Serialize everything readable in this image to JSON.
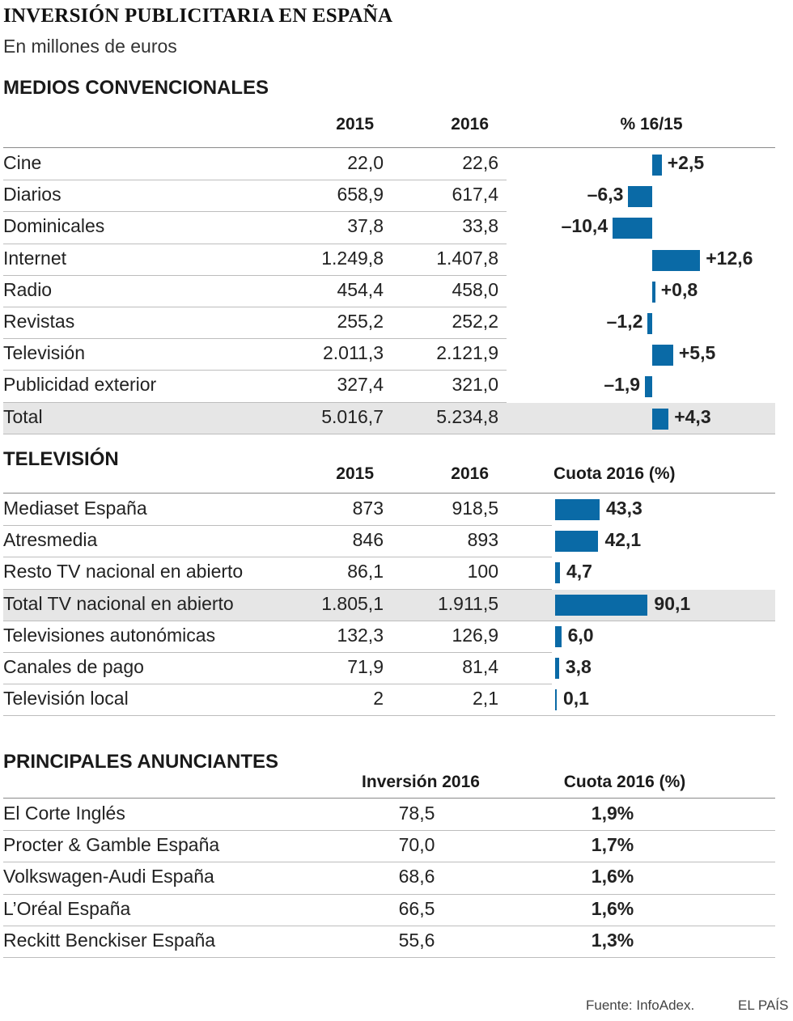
{
  "title": "INVERSIÓN PUBLICITARIA EN ESPAÑA",
  "subtitle": "En millones de euros",
  "colors": {
    "bar": "#0a6aa6",
    "highlight": "#e6e6e6"
  },
  "medios": {
    "heading": "MEDIOS CONVENCIONALES",
    "col_2015": "2015",
    "col_2016": "2016",
    "col_pct": "% 16/15"
  },
  "tv": {
    "heading": "TELEVISIÓN",
    "col_2015": "2015",
    "col_2016": "2016",
    "col_share": "Cuota 2016 (%)"
  },
  "anunciantes": {
    "heading": "PRINCIPALES ANUNCIANTES",
    "col_inv": "Inversión 2016",
    "col_share": "Cuota 2016 (%)"
  },
  "chart_data": [
    {
      "type": "table",
      "title": "MEDIOS CONVENCIONALES",
      "columns": [
        "2015",
        "2016",
        "% 16/15"
      ],
      "rows": [
        {
          "label": "Cine",
          "v2015": "22,0",
          "v2016": "22,6",
          "pct": 2.5,
          "pct_text": "+2,5",
          "highlight": false
        },
        {
          "label": "Diarios",
          "v2015": "658,9",
          "v2016": "617,4",
          "pct": -6.3,
          "pct_text": "–6,3",
          "highlight": false
        },
        {
          "label": "Dominicales",
          "v2015": "37,8",
          "v2016": "33,8",
          "pct": -10.4,
          "pct_text": "–10,4",
          "highlight": false
        },
        {
          "label": "Internet",
          "v2015": "1.249,8",
          "v2016": "1.407,8",
          "pct": 12.6,
          "pct_text": "+12,6",
          "highlight": false
        },
        {
          "label": "Radio",
          "v2015": "454,4",
          "v2016": "458,0",
          "pct": 0.8,
          "pct_text": "+0,8",
          "highlight": false
        },
        {
          "label": "Revistas",
          "v2015": "255,2",
          "v2016": "252,2",
          "pct": -1.2,
          "pct_text": "–1,2",
          "highlight": false
        },
        {
          "label": "Televisión",
          "v2015": "2.011,3",
          "v2016": "2.121,9",
          "pct": 5.5,
          "pct_text": "+5,5",
          "highlight": false
        },
        {
          "label": "Publicidad exterior",
          "v2015": "327,4",
          "v2016": "321,0",
          "pct": -1.9,
          "pct_text": "–1,9",
          "highlight": false
        },
        {
          "label": "Total",
          "v2015": "5.016,7",
          "v2016": "5.234,8",
          "pct": 4.3,
          "pct_text": "+4,3",
          "highlight": true
        }
      ]
    },
    {
      "type": "table",
      "title": "TELEVISIÓN",
      "columns": [
        "2015",
        "2016",
        "Cuota 2016 (%)"
      ],
      "rows": [
        {
          "label": "Mediaset España",
          "v2015": "873",
          "v2016": "918,5",
          "share": 43.3,
          "share_text": "43,3",
          "highlight": false
        },
        {
          "label": "Atresmedia",
          "v2015": "846",
          "v2016": "893",
          "share": 42.1,
          "share_text": "42,1",
          "highlight": false
        },
        {
          "label": "Resto TV nacional en abierto",
          "v2015": "86,1",
          "v2016": "100",
          "share": 4.7,
          "share_text": "4,7",
          "highlight": false
        },
        {
          "label": "Total TV nacional en abierto",
          "v2015": "1.805,1",
          "v2016": "1.911,5",
          "share": 90.1,
          "share_text": "90,1",
          "highlight": true
        },
        {
          "label": "Televisiones autonómicas",
          "v2015": "132,3",
          "v2016": "126,9",
          "share": 6.0,
          "share_text": "6,0",
          "highlight": false
        },
        {
          "label": "Canales de pago",
          "v2015": "71,9",
          "v2016": "81,4",
          "share": 3.8,
          "share_text": "3,8",
          "highlight": false
        },
        {
          "label": "Televisión local",
          "v2015": "2",
          "v2016": "2,1",
          "share": 0.1,
          "share_text": "0,1",
          "highlight": false
        }
      ]
    },
    {
      "type": "table",
      "title": "PRINCIPALES ANUNCIANTES",
      "columns": [
        "Inversión 2016",
        "Cuota 2016 (%)"
      ],
      "rows": [
        {
          "label": "El Corte Inglés",
          "inv": "78,5",
          "share": "1,9%"
        },
        {
          "label": "Procter & Gamble España",
          "inv": "70,0",
          "share": "1,7%"
        },
        {
          "label": "Volkswagen-Audi España",
          "inv": "68,6",
          "share": "1,6%"
        },
        {
          "label": "L’Oréal España",
          "inv": "66,5",
          "share": "1,6%"
        },
        {
          "label": "Reckitt Benckiser España",
          "inv": "55,6",
          "share": "1,3%"
        }
      ]
    }
  ],
  "footer": {
    "source": "Fuente: InfoAdex.",
    "brand": "EL PAÍS"
  }
}
